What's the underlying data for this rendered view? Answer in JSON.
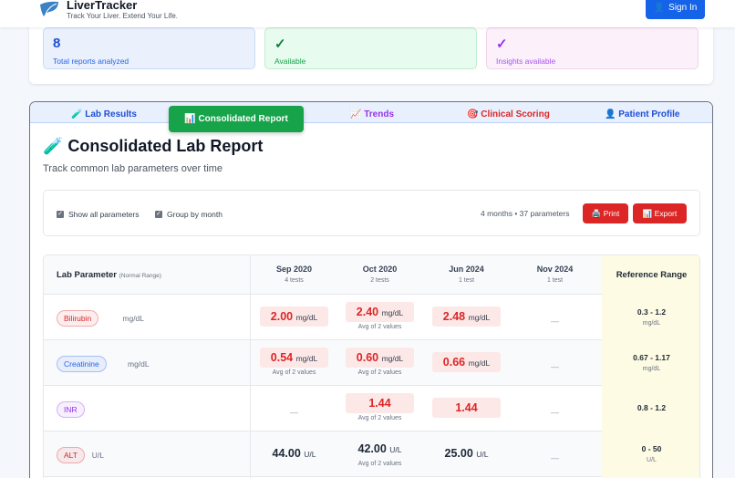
{
  "header": {
    "brand": "LiverTracker",
    "tagline": "Track Your Liver. Extend Your Life.",
    "sign_in": "Sign In"
  },
  "stats": [
    {
      "value": "8",
      "label": "Total reports analyzed"
    },
    {
      "value": "✓",
      "label": "Available"
    },
    {
      "value": "✓",
      "label": "Insights available"
    }
  ],
  "tabs": [
    {
      "icon": "🧪",
      "label": "Lab Results"
    },
    {
      "icon": "📊",
      "label": "Consolidated Report"
    },
    {
      "icon": "📈",
      "label": "Trends"
    },
    {
      "icon": "🎯",
      "label": "Clinical Scoring"
    },
    {
      "icon": "👤",
      "label": "Patient Profile"
    }
  ],
  "report": {
    "title": "🧪 Consolidated Lab Report",
    "subtitle": "Track common lab parameters over time"
  },
  "controls": {
    "show_all": "Show all parameters",
    "group_by_month": "Group by month",
    "meta": "4 months • 37 parameters",
    "print": "🖨️ Print",
    "export": "📊 Export"
  },
  "table": {
    "param_header": "Lab Parameter",
    "param_sub": "(Normal Range)",
    "ref_header": "Reference Range",
    "months": [
      {
        "month": "Sep 2020",
        "tests": "4 tests"
      },
      {
        "month": "Oct 2020",
        "tests": "2 tests"
      },
      {
        "month": "Jun 2024",
        "tests": "1 test"
      },
      {
        "month": "Nov 2024",
        "tests": "1 test"
      }
    ],
    "rows": [
      {
        "name": "Bilirubin",
        "unit": "mg/dL",
        "color": "#dc2626",
        "values": [
          {
            "v": "2.00",
            "u": "mg/dL",
            "hi": true,
            "avg": ""
          },
          {
            "v": "2.40",
            "u": "mg/dL",
            "hi": true,
            "avg": "Avg of 2 values"
          },
          {
            "v": "2.48",
            "u": "mg/dL",
            "hi": true,
            "avg": ""
          },
          null
        ],
        "ref": "0.3 - 1.2",
        "ref_unit": "mg/dL"
      },
      {
        "name": "Creatinine",
        "unit": "mg/dL",
        "color": "#2563eb",
        "values": [
          {
            "v": "0.54",
            "u": "mg/dL",
            "hi": true,
            "avg": "Avg of 2 values"
          },
          {
            "v": "0.60",
            "u": "mg/dL",
            "hi": true,
            "avg": "Avg of 2 values"
          },
          {
            "v": "0.66",
            "u": "mg/dL",
            "hi": true,
            "avg": ""
          },
          null
        ],
        "ref": "0.67 - 1.17",
        "ref_unit": "mg/dL"
      },
      {
        "name": "INR",
        "unit": "",
        "color": "#9333ea",
        "values": [
          null,
          {
            "v": "1.44",
            "u": "",
            "hi": true,
            "avg": "Avg of 2 values"
          },
          {
            "v": "1.44",
            "u": "",
            "hi": true,
            "avg": ""
          },
          null
        ],
        "ref": "0.8 - 1.2",
        "ref_unit": ""
      },
      {
        "name": "ALT",
        "unit": "U/L",
        "color": "#dc2626",
        "values": [
          {
            "v": "44.00",
            "u": "U/L",
            "hi": false,
            "avg": ""
          },
          {
            "v": "42.00",
            "u": "U/L",
            "hi": false,
            "avg": "Avg of 2 values"
          },
          {
            "v": "25.00",
            "u": "U/L",
            "hi": false,
            "avg": ""
          },
          null
        ],
        "ref": "0 - 50",
        "ref_unit": "U/L"
      }
    ],
    "empty": "—"
  }
}
